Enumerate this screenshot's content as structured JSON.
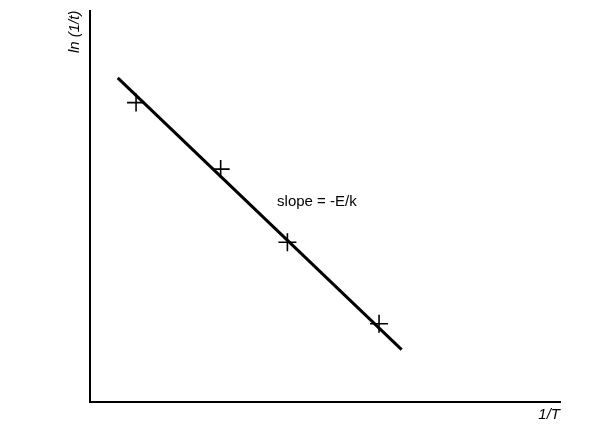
{
  "chart_data": {
    "type": "scatter",
    "x_label": "1/T",
    "y_label": "ln (1/t)",
    "xlim": [
      0,
      10
    ],
    "ylim": [
      0,
      10
    ],
    "tick_labels": false,
    "grid": false,
    "series": [
      {
        "type": "scatter",
        "marker": "cross",
        "color": "#000000",
        "x": [
          0.98,
          2.78,
          4.2,
          6.15
        ],
        "values": [
          7.65,
          5.95,
          4.08,
          2.0
        ]
      },
      {
        "type": "line",
        "line_style": "solid",
        "color": "#000000",
        "x": [
          0.59,
          6.63
        ],
        "values": [
          8.28,
          1.34
        ]
      }
    ],
    "annotations": [
      {
        "text": "slope = -E/k",
        "x": 3.98,
        "y": 5.11
      }
    ]
  }
}
